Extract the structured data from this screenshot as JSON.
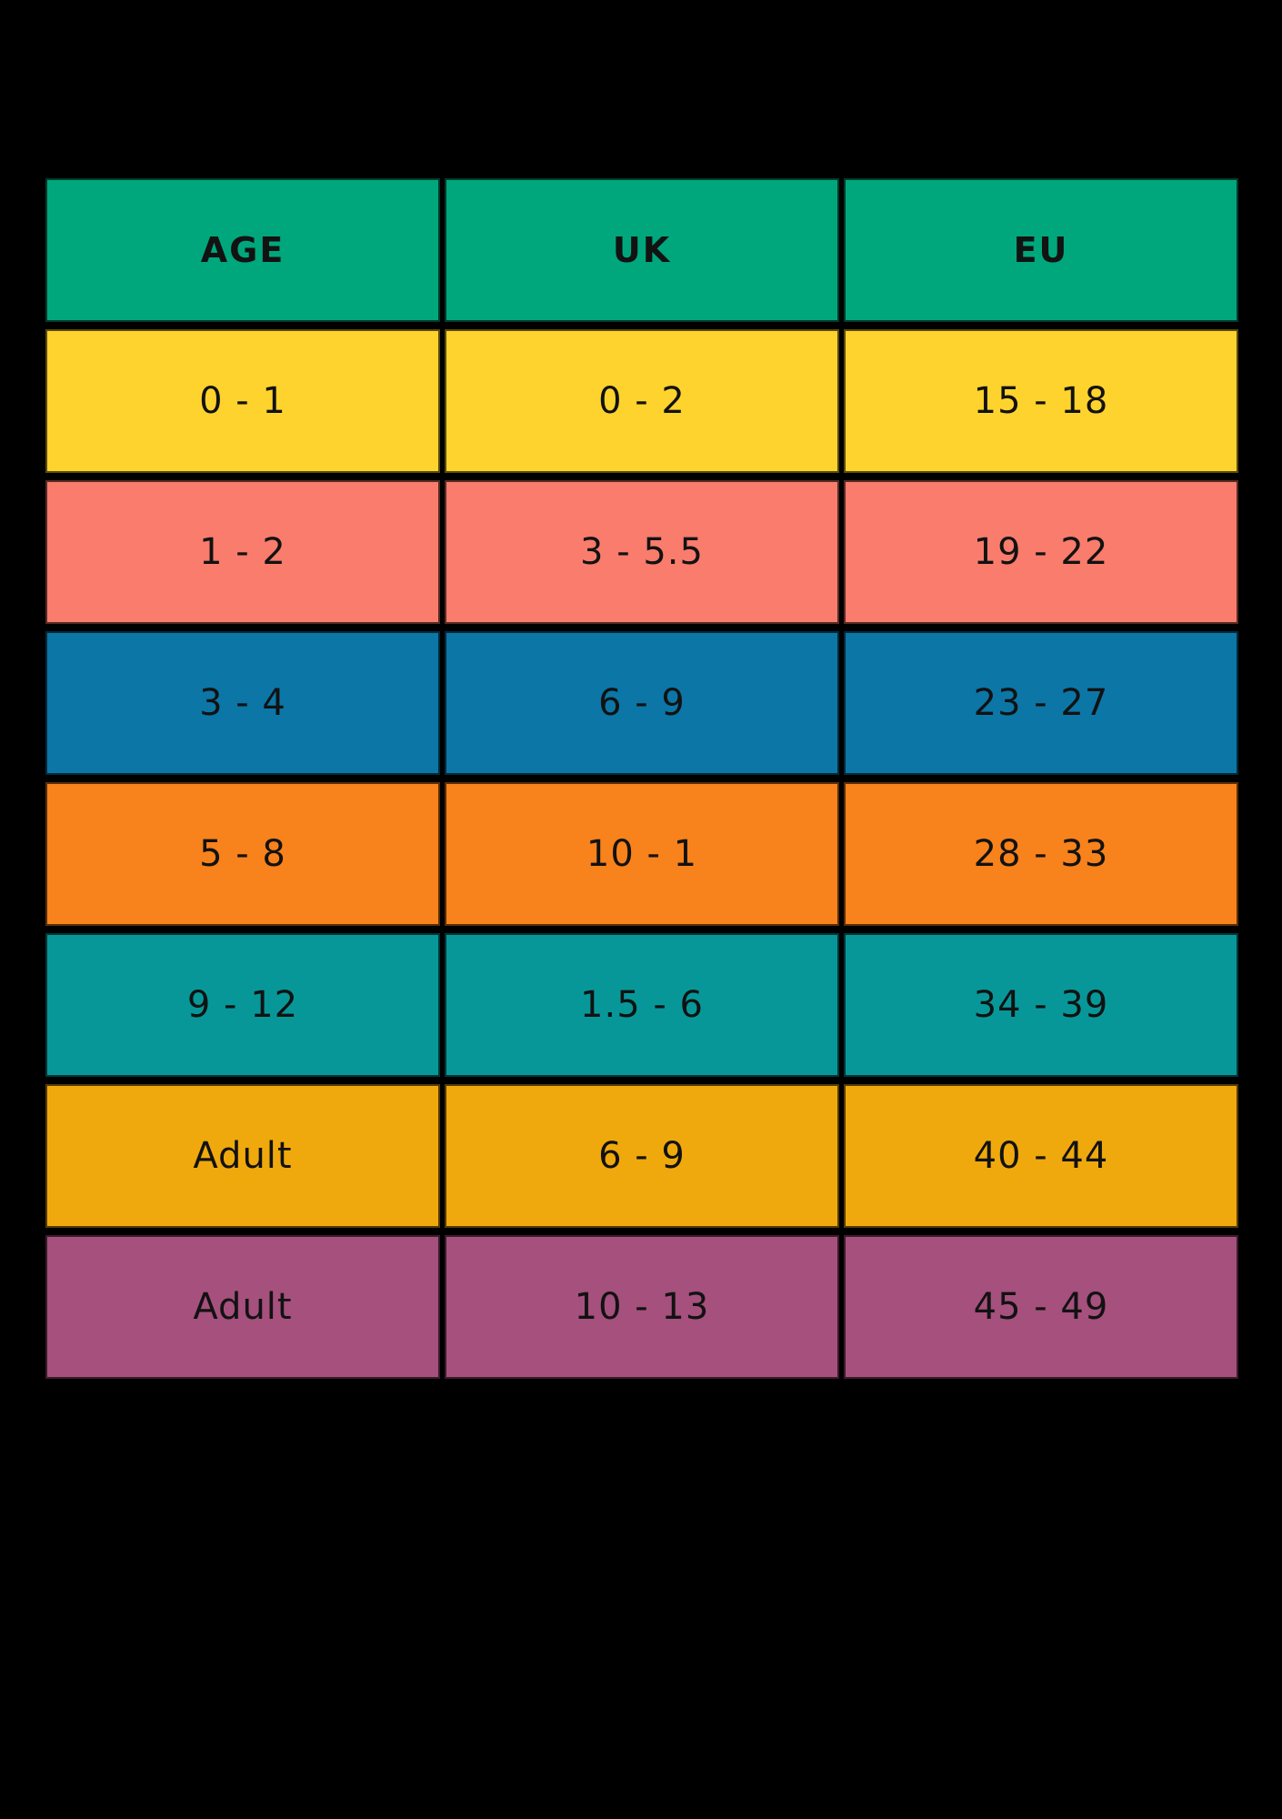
{
  "page": {
    "background_color": "#000000",
    "text_color": "#121212"
  },
  "table": {
    "header_bg": "#00A77C",
    "columns": [
      {
        "key": "age",
        "label": "AGE"
      },
      {
        "key": "uk",
        "label": "UK"
      },
      {
        "key": "eu",
        "label": "EU"
      }
    ],
    "rows": [
      {
        "bg": "#FFD32D",
        "age": "0 - 1",
        "uk": "0 - 2",
        "eu": "15 - 18"
      },
      {
        "bg": "#F97C6C",
        "age": "1 - 2",
        "uk": "3 - 5.5",
        "eu": "19 - 22"
      },
      {
        "bg": "#0C76A6",
        "age": "3 - 4",
        "uk": "6 - 9",
        "eu": "23 - 27"
      },
      {
        "bg": "#F8821B",
        "age": "5 - 8",
        "uk": "10 - 1",
        "eu": "28 - 33"
      },
      {
        "bg": "#089799",
        "age": "9 - 12",
        "uk": "1.5 - 6",
        "eu": "34 - 39"
      },
      {
        "bg": "#F0A90C",
        "age": "Adult",
        "uk": "6 - 9",
        "eu": "40 - 44"
      },
      {
        "bg": "#A5507D",
        "age": "Adult",
        "uk": "10 - 13",
        "eu": "45 - 49"
      }
    ]
  }
}
